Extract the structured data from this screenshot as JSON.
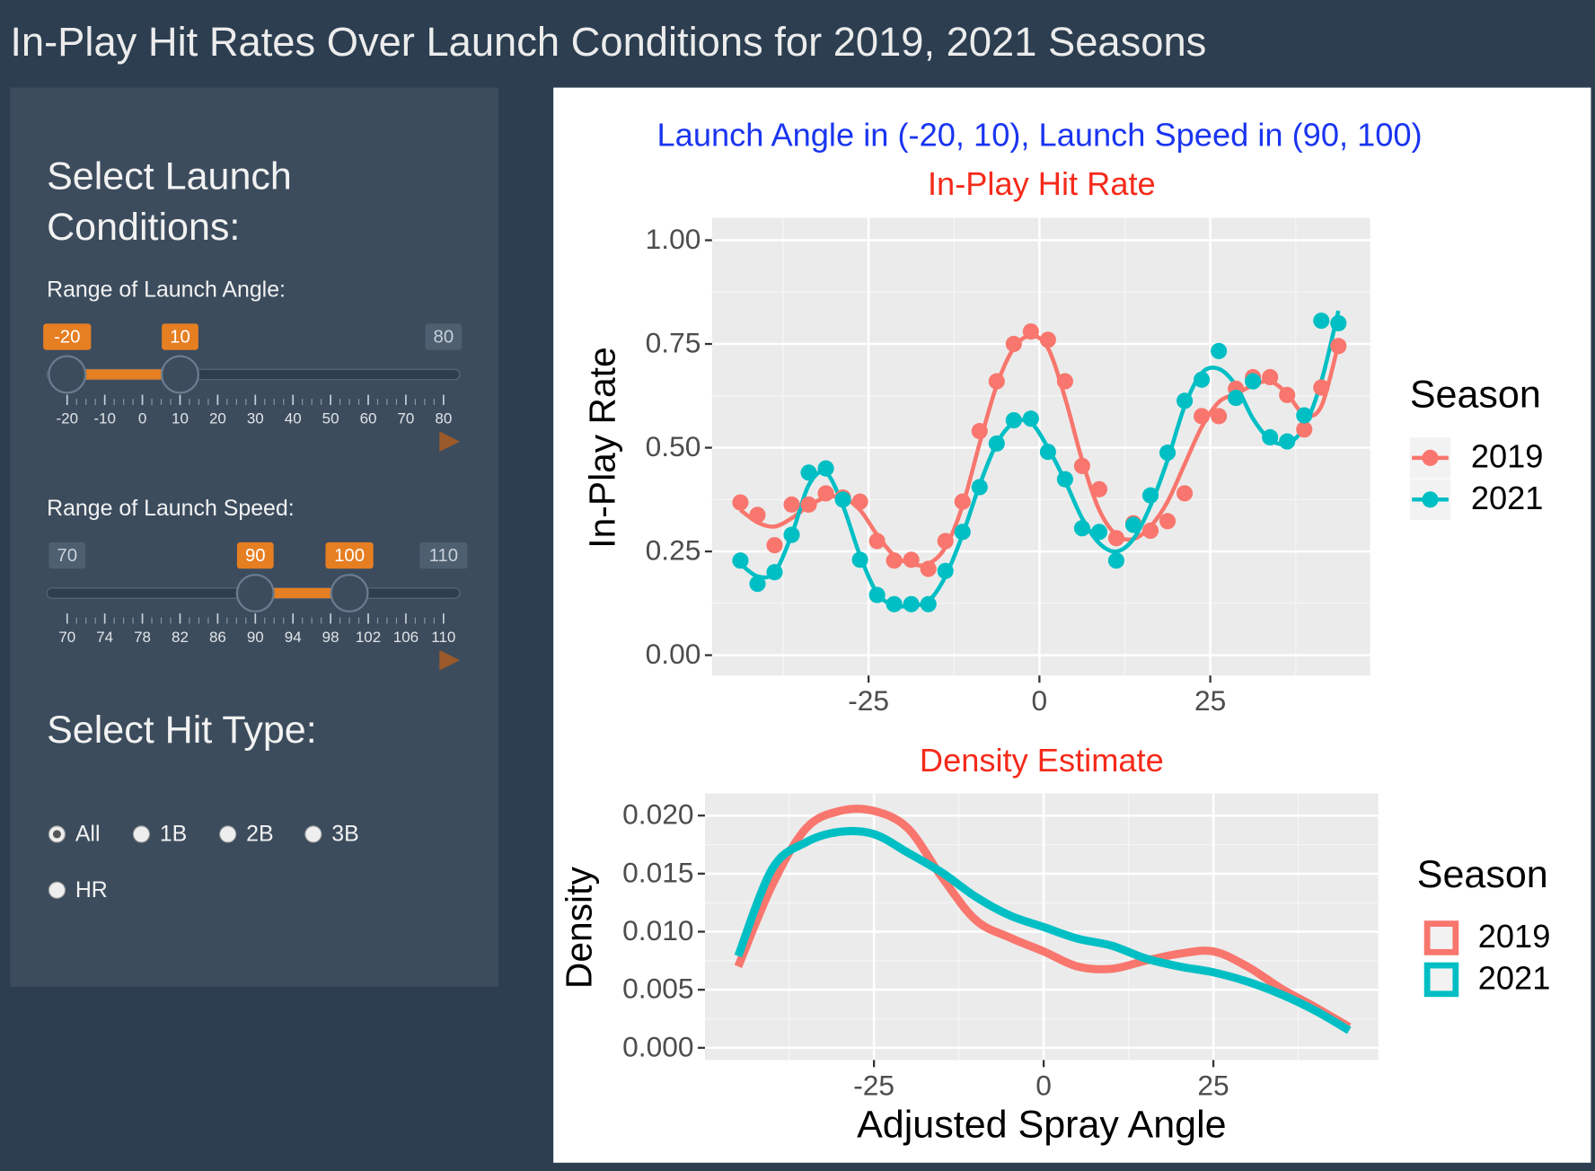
{
  "header": {
    "title": "In-Play Hit Rates Over Launch Conditions for 2019, 2021 Seasons"
  },
  "sidebar": {
    "heading": "Select Launch Conditions:",
    "sliders": [
      {
        "label": "Range of Launch Angle:",
        "min": -20,
        "max": 80,
        "from": -20,
        "to": 10,
        "ticks": [
          -20,
          -10,
          0,
          10,
          20,
          30,
          40,
          50,
          60,
          70,
          80
        ]
      },
      {
        "label": "Range of Launch Speed:",
        "min": 70,
        "max": 110,
        "from": 90,
        "to": 100,
        "ticks": [
          70,
          74,
          78,
          82,
          86,
          90,
          94,
          98,
          102,
          106,
          110
        ]
      }
    ],
    "hit_type": {
      "heading": "Select Hit Type:",
      "options": [
        "All",
        "1B",
        "2B",
        "3B",
        "HR"
      ],
      "selected": "All"
    }
  },
  "chart_data": [
    {
      "type": "scatter",
      "subtitle": "Launch Angle in (-20, 10), Launch Speed in (90, 100)",
      "title": "In-Play Hit Rate",
      "y_label": "In-Play Rate",
      "legend_title": "Season",
      "x": [
        -43.75,
        -41.25,
        -38.75,
        -36.25,
        -33.75,
        -31.25,
        -28.75,
        -26.25,
        -23.75,
        -21.25,
        -18.75,
        -16.25,
        -13.75,
        -11.25,
        -8.75,
        -6.25,
        -3.75,
        -1.25,
        1.25,
        3.75,
        6.25,
        8.75,
        11.25,
        13.75,
        16.25,
        18.75,
        21.25,
        23.75,
        26.25,
        28.75,
        31.25,
        33.75,
        36.25,
        38.75,
        41.25,
        43.75
      ],
      "series": [
        {
          "name": "2019",
          "color": "#f8766d",
          "values": [
            0.368,
            0.338,
            0.265,
            0.363,
            0.363,
            0.39,
            0.38,
            0.37,
            0.275,
            0.228,
            0.23,
            0.208,
            0.275,
            0.37,
            0.54,
            0.66,
            0.75,
            0.78,
            0.76,
            0.66,
            0.456,
            0.4,
            0.282,
            0.318,
            0.3,
            0.323,
            0.39,
            0.576,
            0.576,
            0.642,
            0.67,
            0.67,
            0.627,
            0.544,
            0.645,
            0.745
          ],
          "fit": [
            0.35,
            0.32,
            0.31,
            0.33,
            0.36,
            0.38,
            0.38,
            0.35,
            0.29,
            0.24,
            0.22,
            0.22,
            0.26,
            0.36,
            0.51,
            0.65,
            0.74,
            0.77,
            0.74,
            0.62,
            0.47,
            0.35,
            0.29,
            0.28,
            0.31,
            0.37,
            0.46,
            0.55,
            0.61,
            0.63,
            0.65,
            0.66,
            0.63,
            0.58,
            0.6,
            0.75
          ]
        },
        {
          "name": "2021",
          "color": "#00bfc4",
          "values": [
            0.228,
            0.172,
            0.2,
            0.29,
            0.44,
            0.45,
            0.375,
            0.23,
            0.145,
            0.123,
            0.123,
            0.123,
            0.203,
            0.297,
            0.405,
            0.51,
            0.566,
            0.57,
            0.49,
            0.424,
            0.306,
            0.297,
            0.228,
            0.314,
            0.385,
            0.488,
            0.613,
            0.664,
            0.733,
            0.62,
            0.66,
            0.525,
            0.515,
            0.578,
            0.806,
            0.8
          ],
          "fit": [
            0.22,
            0.19,
            0.2,
            0.29,
            0.41,
            0.44,
            0.36,
            0.24,
            0.15,
            0.12,
            0.12,
            0.13,
            0.19,
            0.29,
            0.41,
            0.51,
            0.56,
            0.56,
            0.5,
            0.42,
            0.33,
            0.27,
            0.25,
            0.28,
            0.36,
            0.47,
            0.6,
            0.68,
            0.69,
            0.65,
            0.57,
            0.52,
            0.51,
            0.55,
            0.66,
            0.83
          ]
        }
      ],
      "xlim": [
        -47.9,
        48.4
      ],
      "xticks": [
        -25,
        0,
        25
      ],
      "ylim": [
        -0.049,
        1.054
      ],
      "yticks": [
        {
          "value": 0,
          "label": "0.00"
        },
        0.25,
        {
          "value": 0.5,
          "label": "0.50"
        },
        0.75,
        {
          "value": 1,
          "label": "1.00"
        }
      ],
      "grid": true
    },
    {
      "type": "line",
      "title": "Density Estimate",
      "x_label": "Adjusted Spray Angle",
      "y_label": "Density",
      "legend_title": "Season",
      "x": [
        -45,
        -40,
        -35,
        -30,
        -25,
        -20,
        -15,
        -10,
        -5,
        0,
        5,
        10,
        15,
        20,
        25,
        30,
        35,
        40,
        45
      ],
      "series": [
        {
          "name": "2019",
          "color": "#f8766d",
          "values": [
            0.007,
            0.014,
            0.0189,
            0.0204,
            0.0204,
            0.0189,
            0.0147,
            0.011,
            0.0095,
            0.0083,
            0.007,
            0.0068,
            0.0075,
            0.0081,
            0.0083,
            0.007,
            0.0051,
            0.0035,
            0.0018
          ]
        },
        {
          "name": "2021",
          "color": "#00bfc4",
          "values": [
            0.0079,
            0.0154,
            0.0177,
            0.0186,
            0.0184,
            0.0168,
            0.0151,
            0.013,
            0.0114,
            0.0104,
            0.0094,
            0.0088,
            0.0077,
            0.007,
            0.0065,
            0.0057,
            0.0046,
            0.0032,
            0.0015
          ]
        }
      ],
      "xlim": [
        -49.9,
        49.3
      ],
      "xticks": [
        -25,
        0,
        25
      ],
      "ylim": [
        -0.00105,
        0.0219
      ],
      "yticks": [
        {
          "value": 0,
          "label": "0.000"
        },
        0.005,
        {
          "value": 0.01,
          "label": "0.010"
        },
        0.015,
        {
          "value": 0.02,
          "label": "0.020"
        }
      ],
      "grid": true
    }
  ]
}
